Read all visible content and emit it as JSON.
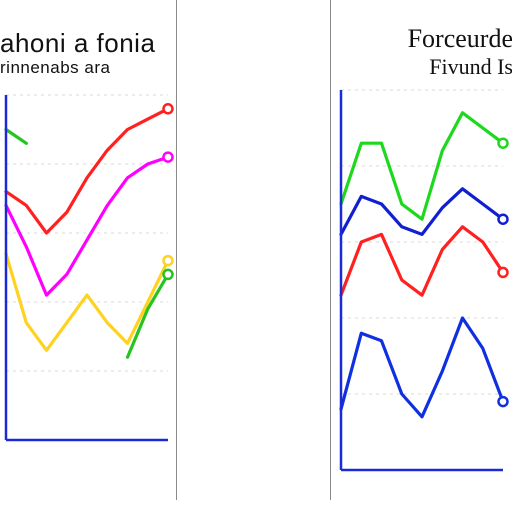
{
  "chart_data": [
    {
      "type": "line",
      "title": "ahoni a fonia",
      "subtitle": "rinnenabs ara",
      "grid": true,
      "x": [
        0,
        1,
        2,
        3,
        4,
        5,
        6,
        7,
        8
      ],
      "ylim": [
        0,
        10
      ],
      "series": [
        {
          "color": "#ff2020",
          "values": [
            7.2,
            6.8,
            6.0,
            6.6,
            7.6,
            8.4,
            9.0,
            9.3,
            9.6
          ]
        },
        {
          "color": "#ff00ff",
          "values": [
            6.8,
            5.6,
            4.2,
            4.8,
            5.8,
            6.8,
            7.6,
            8.0,
            8.2
          ]
        },
        {
          "color": "#ffd21e",
          "values": [
            5.4,
            3.4,
            2.6,
            3.4,
            4.2,
            3.4,
            2.8,
            4.0,
            5.2
          ]
        },
        {
          "color": "#25c420",
          "values": [
            9.0,
            8.6,
            null,
            null,
            null,
            null,
            2.4,
            3.8,
            4.8
          ]
        }
      ]
    },
    {
      "type": "line",
      "title": "Forceurde",
      "subtitle": "Fivund Is",
      "grid": true,
      "x": [
        0,
        1,
        2,
        3,
        4,
        5,
        6,
        7,
        8
      ],
      "ylim": [
        0,
        10
      ],
      "series": [
        {
          "color": "#1ed81e",
          "values": [
            7.0,
            8.6,
            8.6,
            7.0,
            6.6,
            8.4,
            9.4,
            9.0,
            8.6
          ]
        },
        {
          "color": "#1020d0",
          "values": [
            6.2,
            7.2,
            7.0,
            6.4,
            6.2,
            6.9,
            7.4,
            7.0,
            6.6
          ]
        },
        {
          "color": "#ff2020",
          "values": [
            4.6,
            6.0,
            6.2,
            5.0,
            4.6,
            5.8,
            6.4,
            6.0,
            5.2
          ]
        },
        {
          "color": "#1030e0",
          "values": [
            1.6,
            3.6,
            3.4,
            2.0,
            1.4,
            2.6,
            4.0,
            3.2,
            1.8
          ]
        }
      ]
    }
  ]
}
